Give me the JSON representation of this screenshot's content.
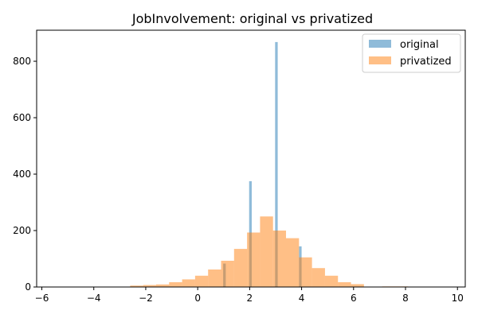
{
  "chart_data": {
    "type": "histogram",
    "title": "JobInvolvement: original vs privatized",
    "xlabel": "",
    "ylabel": "",
    "xlim": [
      -6.2,
      10.3
    ],
    "ylim": [
      0,
      910
    ],
    "x_ticks": [
      -6,
      -4,
      -2,
      0,
      2,
      4,
      6,
      8,
      10
    ],
    "y_ticks": [
      0,
      200,
      400,
      600,
      800
    ],
    "grid": false,
    "legend": {
      "position": "top-right",
      "entries": [
        "original",
        "privatized"
      ]
    },
    "colors": {
      "original": "#1f77b4",
      "privatized": "#ff7f0e",
      "opacity": 0.5
    },
    "series": [
      {
        "name": "original",
        "bins": [
          {
            "x0": 0.98,
            "x1": 1.08,
            "value": 83
          },
          {
            "x0": 1.98,
            "x1": 2.08,
            "value": 375
          },
          {
            "x0": 2.98,
            "x1": 3.08,
            "value": 868
          },
          {
            "x0": 3.9,
            "x1": 4.0,
            "value": 144
          }
        ]
      },
      {
        "name": "privatized",
        "bins": [
          {
            "x0": -2.6,
            "x1": -2.1,
            "value": 5
          },
          {
            "x0": -2.1,
            "x1": -1.6,
            "value": 7
          },
          {
            "x0": -1.6,
            "x1": -1.1,
            "value": 9
          },
          {
            "x0": -1.1,
            "x1": -0.6,
            "value": 17
          },
          {
            "x0": -0.6,
            "x1": -0.1,
            "value": 27
          },
          {
            "x0": -0.1,
            "x1": 0.4,
            "value": 40
          },
          {
            "x0": 0.4,
            "x1": 0.9,
            "value": 62
          },
          {
            "x0": 0.9,
            "x1": 1.4,
            "value": 93
          },
          {
            "x0": 1.4,
            "x1": 1.9,
            "value": 135
          },
          {
            "x0": 1.9,
            "x1": 2.4,
            "value": 193
          },
          {
            "x0": 2.4,
            "x1": 2.9,
            "value": 250
          },
          {
            "x0": 2.9,
            "x1": 3.4,
            "value": 200
          },
          {
            "x0": 3.4,
            "x1": 3.9,
            "value": 173
          },
          {
            "x0": 3.9,
            "x1": 4.4,
            "value": 105
          },
          {
            "x0": 4.4,
            "x1": 4.9,
            "value": 67
          },
          {
            "x0": 4.9,
            "x1": 5.4,
            "value": 40
          },
          {
            "x0": 5.4,
            "x1": 5.9,
            "value": 17
          },
          {
            "x0": 5.9,
            "x1": 6.4,
            "value": 10
          },
          {
            "x0": 7.1,
            "x1": 7.6,
            "value": 2
          },
          {
            "x0": 7.6,
            "x1": 8.1,
            "value": 2
          }
        ]
      }
    ]
  }
}
